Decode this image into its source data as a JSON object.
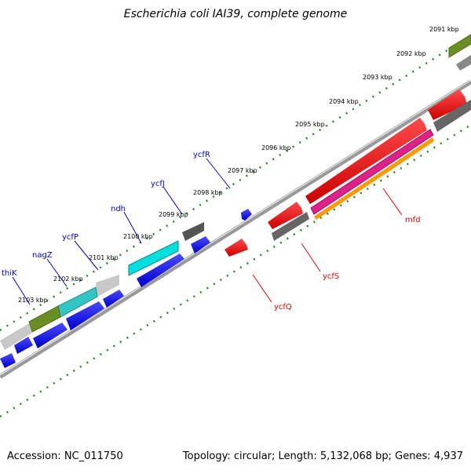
{
  "title": "Escherichia coli IAI39, complete genome",
  "accession": "Accession: NC_011750",
  "summary": "Topology: circular; Length: 5,132,068 bp; Genes: 4,937",
  "kbp_labels": [
    "2091 kbp",
    "2092 kbp",
    "2093 kbp",
    "2094 kbp",
    "2095 kbp",
    "2096 kbp",
    "2097 kbp",
    "2098 kbp",
    "2099 kbp",
    "2100 kbp",
    "2101 kbp",
    "2102 kbp",
    "2103 kbp"
  ],
  "gene_labels": {
    "ycfR": "ycfR",
    "ycfJ": "ycfJ",
    "ndh": "ndh",
    "ycfP": "ycfP",
    "nagZ": "nagZ",
    "thiK": "thiK",
    "mfd": "mfd",
    "ycfS": "ycfS",
    "ycfQ": "ycfQ"
  },
  "colors": {
    "forward_gene": "#0000ee",
    "reverse_gene": "#ee0000",
    "cog_grey": "#666666",
    "cog_lightgrey": "#c8c8c8",
    "cog_cyan": "#00e5e5",
    "cog_teal": "#33c4c4",
    "cog_olive": "#6b8e23",
    "cog_magenta": "#e0218a",
    "cog_orange": "#ff9900",
    "backbone": "#888888",
    "tick": "#228b22"
  }
}
